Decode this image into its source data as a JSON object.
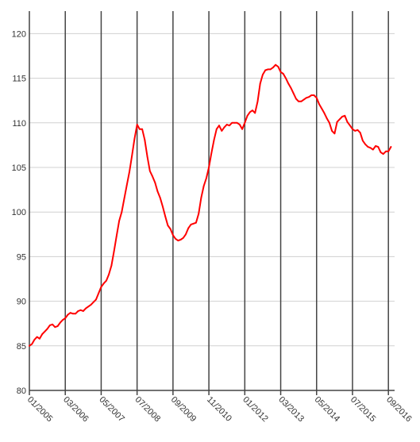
{
  "chart_data": {
    "type": "line",
    "title": "",
    "xlabel": "",
    "ylabel": "",
    "ylim": [
      80,
      122
    ],
    "x_range": [
      "2005-01",
      "2016-09"
    ],
    "grid": {
      "horizontal": true,
      "vertical": true
    },
    "y_ticks": [
      80,
      85,
      90,
      95,
      100,
      105,
      110,
      115,
      120
    ],
    "y_tick_labels": [
      "80",
      "85",
      "90",
      "95",
      "100",
      "105",
      "110",
      "115",
      "120"
    ],
    "x_ticks": [
      "2005-01",
      "2006-03",
      "2007-05",
      "2008-07",
      "2009-09",
      "2010-11",
      "2012-01",
      "2013-03",
      "2014-05",
      "2015-07",
      "2016-09"
    ],
    "x_tick_labels": [
      "01/2005",
      "03/2006",
      "05/2007",
      "07/2008",
      "09/2009",
      "11/2010",
      "01/2012",
      "03/2013",
      "05/2014",
      "07/2015",
      "09/2016"
    ],
    "line_color": "#ff0000",
    "series": [
      {
        "points": [
          [
            "2005-01",
            85.0
          ],
          [
            "2005-02",
            85.2
          ],
          [
            "2005-03",
            85.7
          ],
          [
            "2005-04",
            86.0
          ],
          [
            "2005-05",
            85.8
          ],
          [
            "2005-06",
            86.3
          ],
          [
            "2005-07",
            86.6
          ],
          [
            "2005-08",
            86.9
          ],
          [
            "2005-09",
            87.3
          ],
          [
            "2005-10",
            87.4
          ],
          [
            "2005-11",
            87.1
          ],
          [
            "2005-12",
            87.2
          ],
          [
            "2006-01",
            87.6
          ],
          [
            "2006-02",
            87.9
          ],
          [
            "2006-03",
            88.1
          ],
          [
            "2006-04",
            88.5
          ],
          [
            "2006-05",
            88.7
          ],
          [
            "2006-06",
            88.6
          ],
          [
            "2006-07",
            88.6
          ],
          [
            "2006-08",
            88.9
          ],
          [
            "2006-09",
            89.0
          ],
          [
            "2006-10",
            88.9
          ],
          [
            "2006-11",
            89.2
          ],
          [
            "2006-12",
            89.4
          ],
          [
            "2007-01",
            89.6
          ],
          [
            "2007-02",
            89.9
          ],
          [
            "2007-03",
            90.2
          ],
          [
            "2007-04",
            90.9
          ],
          [
            "2007-05",
            91.6
          ],
          [
            "2007-06",
            92.0
          ],
          [
            "2007-07",
            92.3
          ],
          [
            "2007-08",
            93.0
          ],
          [
            "2007-09",
            94.0
          ],
          [
            "2007-10",
            95.6
          ],
          [
            "2007-11",
            97.3
          ],
          [
            "2007-12",
            99.0
          ],
          [
            "2008-01",
            100.0
          ],
          [
            "2008-02",
            101.5
          ],
          [
            "2008-03",
            103.0
          ],
          [
            "2008-04",
            104.5
          ],
          [
            "2008-05",
            106.3
          ],
          [
            "2008-06",
            108.2
          ],
          [
            "2008-07",
            109.8
          ],
          [
            "2008-08",
            109.3
          ],
          [
            "2008-09",
            109.3
          ],
          [
            "2008-10",
            108.1
          ],
          [
            "2008-11",
            106.2
          ],
          [
            "2008-12",
            104.6
          ],
          [
            "2009-01",
            104.0
          ],
          [
            "2009-02",
            103.3
          ],
          [
            "2009-03",
            102.3
          ],
          [
            "2009-04",
            101.6
          ],
          [
            "2009-05",
            100.6
          ],
          [
            "2009-06",
            99.5
          ],
          [
            "2009-07",
            98.5
          ],
          [
            "2009-08",
            98.1
          ],
          [
            "2009-09",
            97.4
          ],
          [
            "2009-10",
            97.0
          ],
          [
            "2009-11",
            96.8
          ],
          [
            "2009-12",
            96.9
          ],
          [
            "2010-01",
            97.1
          ],
          [
            "2010-02",
            97.5
          ],
          [
            "2010-03",
            98.2
          ],
          [
            "2010-04",
            98.6
          ],
          [
            "2010-05",
            98.7
          ],
          [
            "2010-06",
            98.8
          ],
          [
            "2010-07",
            99.8
          ],
          [
            "2010-08",
            101.6
          ],
          [
            "2010-09",
            102.9
          ],
          [
            "2010-10",
            103.8
          ],
          [
            "2010-11",
            105.0
          ],
          [
            "2010-12",
            106.6
          ],
          [
            "2011-01",
            108.1
          ],
          [
            "2011-02",
            109.3
          ],
          [
            "2011-03",
            109.7
          ],
          [
            "2011-04",
            109.1
          ],
          [
            "2011-05",
            109.5
          ],
          [
            "2011-06",
            109.8
          ],
          [
            "2011-07",
            109.7
          ],
          [
            "2011-08",
            110.0
          ],
          [
            "2011-09",
            110.0
          ],
          [
            "2011-10",
            110.0
          ],
          [
            "2011-11",
            109.8
          ],
          [
            "2011-12",
            109.3
          ],
          [
            "2012-01",
            110.0
          ],
          [
            "2012-02",
            110.8
          ],
          [
            "2012-03",
            111.2
          ],
          [
            "2012-04",
            111.4
          ],
          [
            "2012-05",
            111.1
          ],
          [
            "2012-06",
            112.4
          ],
          [
            "2012-07",
            114.4
          ],
          [
            "2012-08",
            115.4
          ],
          [
            "2012-09",
            115.9
          ],
          [
            "2012-10",
            116.0
          ],
          [
            "2012-11",
            116.0
          ],
          [
            "2012-12",
            116.2
          ],
          [
            "2013-01",
            116.5
          ],
          [
            "2013-02",
            116.3
          ],
          [
            "2013-03",
            115.7
          ],
          [
            "2013-04",
            115.5
          ],
          [
            "2013-05",
            115.0
          ],
          [
            "2013-06",
            114.4
          ],
          [
            "2013-07",
            113.9
          ],
          [
            "2013-08",
            113.3
          ],
          [
            "2013-09",
            112.7
          ],
          [
            "2013-10",
            112.4
          ],
          [
            "2013-11",
            112.4
          ],
          [
            "2013-12",
            112.6
          ],
          [
            "2014-01",
            112.8
          ],
          [
            "2014-02",
            112.9
          ],
          [
            "2014-03",
            113.1
          ],
          [
            "2014-04",
            113.1
          ],
          [
            "2014-05",
            112.8
          ],
          [
            "2014-06",
            112.1
          ],
          [
            "2014-07",
            111.6
          ],
          [
            "2014-08",
            111.1
          ],
          [
            "2014-09",
            110.5
          ],
          [
            "2014-10",
            110.0
          ],
          [
            "2014-11",
            109.1
          ],
          [
            "2014-12",
            108.8
          ],
          [
            "2015-01",
            110.1
          ],
          [
            "2015-02",
            110.4
          ],
          [
            "2015-03",
            110.7
          ],
          [
            "2015-04",
            110.8
          ],
          [
            "2015-05",
            110.1
          ],
          [
            "2015-06",
            109.7
          ],
          [
            "2015-07",
            109.3
          ],
          [
            "2015-08",
            109.1
          ],
          [
            "2015-09",
            109.2
          ],
          [
            "2015-10",
            108.9
          ],
          [
            "2015-11",
            108.0
          ],
          [
            "2015-12",
            107.6
          ],
          [
            "2016-01",
            107.3
          ],
          [
            "2016-02",
            107.2
          ],
          [
            "2016-03",
            107.0
          ],
          [
            "2016-04",
            107.4
          ],
          [
            "2016-05",
            107.3
          ],
          [
            "2016-06",
            106.7
          ],
          [
            "2016-07",
            106.5
          ],
          [
            "2016-08",
            106.8
          ],
          [
            "2016-09",
            106.8
          ],
          [
            "2016-10",
            107.3
          ]
        ]
      }
    ]
  }
}
